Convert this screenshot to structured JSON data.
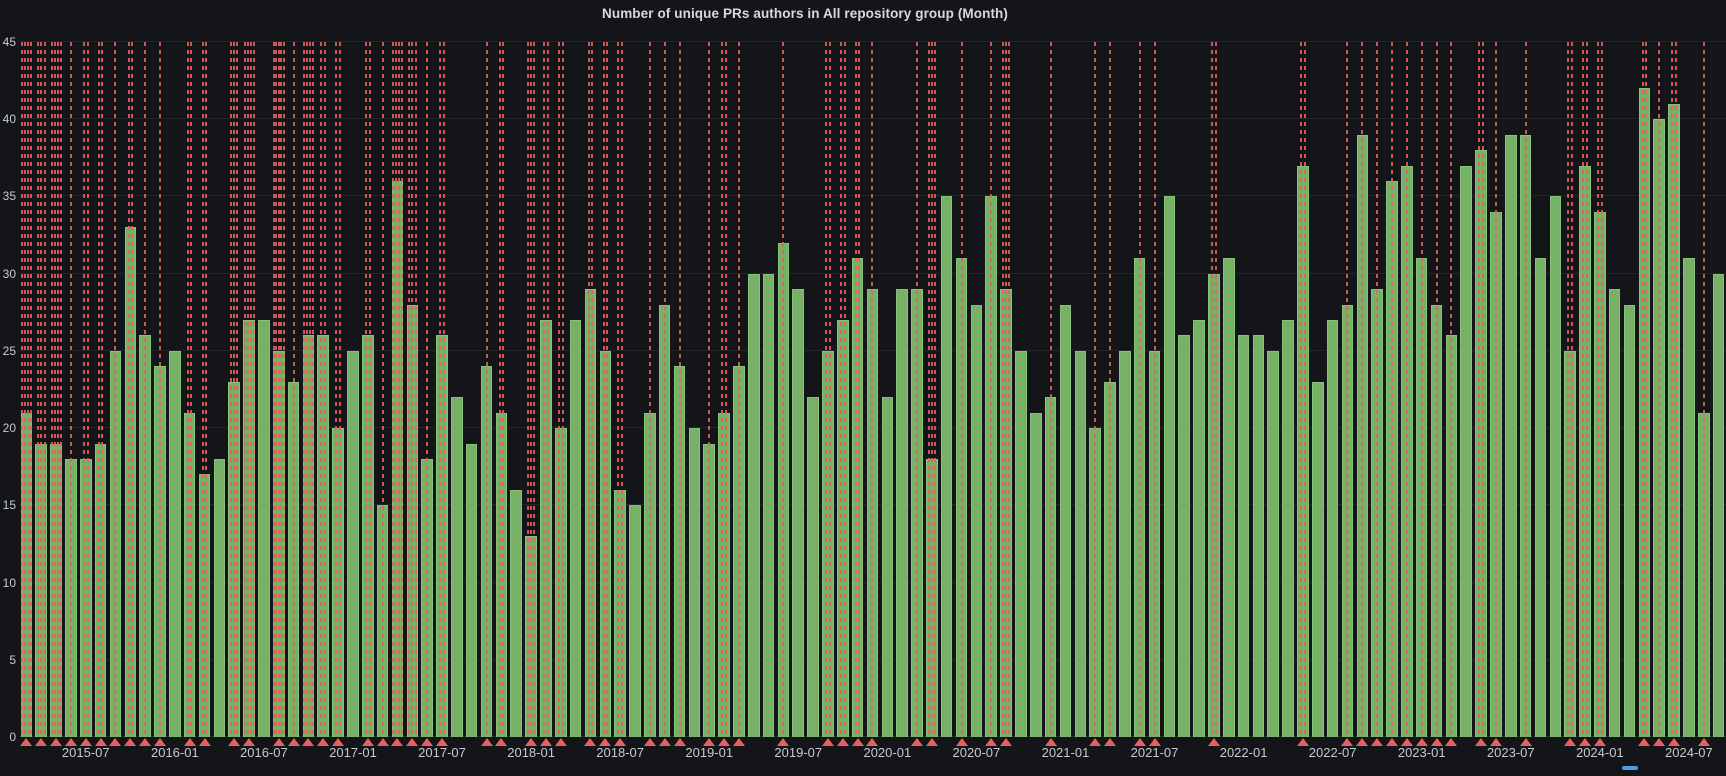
{
  "title": "Number of unique PRs authors in All repository group (Month)",
  "colors": {
    "background": "#131519",
    "bar_fill": "#76b167",
    "bar_edge": "#88c178",
    "annotation_red": "#ea5e5e",
    "grid": "rgba(255,255,255,0.07)",
    "axis_text": "#c7cbd1",
    "title_text": "#d8d9da",
    "legend_hint_blue": "#4a9af2"
  },
  "y_axis": {
    "min": 0,
    "max": 45,
    "step": 5,
    "ticks": [
      "0",
      "5",
      "10",
      "15",
      "20",
      "25",
      "30",
      "35",
      "40",
      "45"
    ]
  },
  "x_axis": {
    "labels": [
      {
        "text": "2015-07",
        "bar_index": 4
      },
      {
        "text": "2016-01",
        "bar_index": 10
      },
      {
        "text": "2016-07",
        "bar_index": 16
      },
      {
        "text": "2017-01",
        "bar_index": 22
      },
      {
        "text": "2017-07",
        "bar_index": 28
      },
      {
        "text": "2018-01",
        "bar_index": 34
      },
      {
        "text": "2018-07",
        "bar_index": 40
      },
      {
        "text": "2019-01",
        "bar_index": 46
      },
      {
        "text": "2019-07",
        "bar_index": 52
      },
      {
        "text": "2020-01",
        "bar_index": 58
      },
      {
        "text": "2020-07",
        "bar_index": 64
      },
      {
        "text": "2021-01",
        "bar_index": 70
      },
      {
        "text": "2021-07",
        "bar_index": 76
      },
      {
        "text": "2022-01",
        "bar_index": 82
      },
      {
        "text": "2022-07",
        "bar_index": 88
      },
      {
        "text": "2023-01",
        "bar_index": 94
      },
      {
        "text": "2023-07",
        "bar_index": 100
      },
      {
        "text": "2024-01",
        "bar_index": 106
      },
      {
        "text": "2024-07",
        "bar_index": 112
      }
    ]
  },
  "chart_data": {
    "type": "bar",
    "title": "Number of unique PRs authors in All repository group (Month)",
    "xlabel": "",
    "ylabel": "",
    "ylim": [
      0,
      45
    ],
    "grid": true,
    "legend_position": "none",
    "x": [
      "2015-03",
      "2015-04",
      "2015-05",
      "2015-06",
      "2015-07",
      "2015-08",
      "2015-09",
      "2015-10",
      "2015-11",
      "2015-12",
      "2016-01",
      "2016-02",
      "2016-03",
      "2016-04",
      "2016-05",
      "2016-06",
      "2016-07",
      "2016-08",
      "2016-09",
      "2016-10",
      "2016-11",
      "2016-12",
      "2017-01",
      "2017-02",
      "2017-03",
      "2017-04",
      "2017-05",
      "2017-06",
      "2017-07",
      "2017-08",
      "2017-09",
      "2017-10",
      "2017-11",
      "2017-12",
      "2018-01",
      "2018-02",
      "2018-03",
      "2018-04",
      "2018-05",
      "2018-06",
      "2018-07",
      "2018-08",
      "2018-09",
      "2018-10",
      "2018-11",
      "2018-12",
      "2019-01",
      "2019-02",
      "2019-03",
      "2019-04",
      "2019-05",
      "2019-06",
      "2019-07",
      "2019-08",
      "2019-09",
      "2019-10",
      "2019-11",
      "2019-12",
      "2020-01",
      "2020-02",
      "2020-03",
      "2020-04",
      "2020-05",
      "2020-06",
      "2020-07",
      "2020-08",
      "2020-09",
      "2020-10",
      "2020-11",
      "2020-12",
      "2021-01",
      "2021-02",
      "2021-03",
      "2021-04",
      "2021-05",
      "2021-06",
      "2021-07",
      "2021-08",
      "2021-09",
      "2021-10",
      "2021-11",
      "2021-12",
      "2022-01",
      "2022-02",
      "2022-03",
      "2022-04",
      "2022-05",
      "2022-06",
      "2022-07",
      "2022-08",
      "2022-09",
      "2022-10",
      "2022-11",
      "2022-12",
      "2023-01",
      "2023-02",
      "2023-03",
      "2023-04",
      "2023-05",
      "2023-06",
      "2023-07",
      "2023-08",
      "2023-09",
      "2023-10",
      "2023-11",
      "2023-12",
      "2024-01",
      "2024-02",
      "2024-03",
      "2024-04",
      "2024-05",
      "2024-06",
      "2024-07",
      "2024-08",
      "2024-09"
    ],
    "values": [
      21,
      19,
      19,
      18,
      18,
      19,
      25,
      33,
      26,
      24,
      25,
      21,
      17,
      18,
      23,
      27,
      27,
      25,
      23,
      26,
      26,
      20,
      25,
      26,
      15,
      36,
      28,
      18,
      26,
      22,
      19,
      24,
      21,
      16,
      13,
      27,
      20,
      27,
      29,
      25,
      16,
      15,
      21,
      28,
      24,
      20,
      19,
      21,
      24,
      30,
      30,
      32,
      29,
      22,
      25,
      27,
      31,
      29,
      22,
      29,
      29,
      18,
      35,
      31,
      28,
      35,
      29,
      25,
      21,
      22,
      28,
      25,
      20,
      23,
      25,
      31,
      25,
      35,
      26,
      27,
      30,
      31,
      26,
      26,
      25,
      27,
      37,
      23,
      27,
      28,
      39,
      29,
      36,
      37,
      31,
      28,
      26,
      37,
      38,
      34,
      39,
      39,
      31,
      35,
      25,
      37,
      34,
      29,
      28,
      42,
      40,
      41,
      31,
      21,
      30
    ],
    "annotation_lines_per_month": [
      4,
      3,
      4,
      1,
      2,
      2,
      1,
      2,
      1,
      1,
      0,
      2,
      2,
      0,
      3,
      4,
      0,
      5,
      1,
      4,
      2,
      2,
      0,
      2,
      1,
      4,
      3,
      1,
      2,
      0,
      0,
      1,
      2,
      0,
      3,
      2,
      2,
      0,
      2,
      2,
      2,
      0,
      1,
      1,
      1,
      0,
      1,
      2,
      1,
      0,
      0,
      1,
      0,
      0,
      2,
      2,
      2,
      1,
      0,
      0,
      1,
      3,
      0,
      1,
      0,
      1,
      3,
      0,
      0,
      1,
      0,
      0,
      1,
      1,
      0,
      1,
      1,
      0,
      0,
      0,
      2,
      0,
      0,
      0,
      0,
      0,
      2,
      0,
      0,
      1,
      1,
      1,
      1,
      1,
      1,
      1,
      1,
      0,
      2,
      1,
      0,
      1,
      0,
      0,
      2,
      2,
      2,
      0,
      0,
      2,
      1,
      2,
      0,
      1,
      0
    ]
  }
}
